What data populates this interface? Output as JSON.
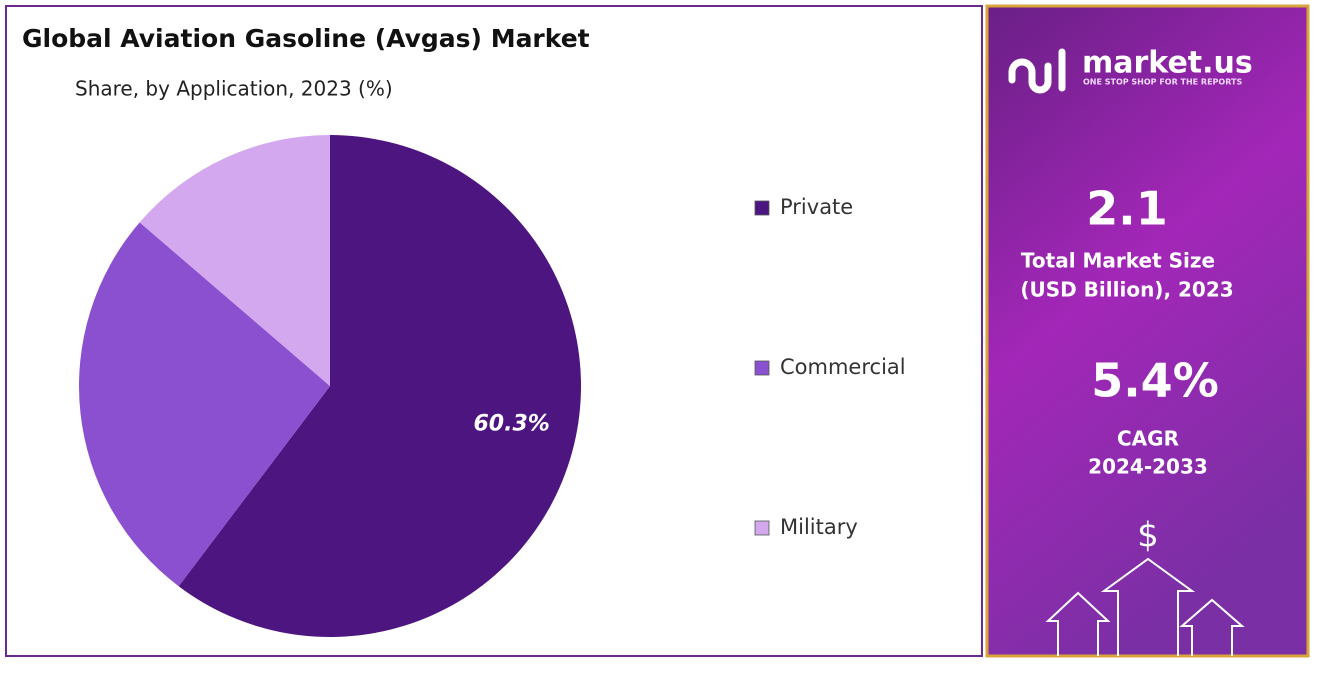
{
  "chart_data": {
    "type": "pie",
    "title": "Global Aviation Gasoline (Avgas) Market",
    "subtitle": "Share, by Application, 2023 (%)",
    "categories": [
      "Private",
      "Commercial",
      "Military"
    ],
    "values": [
      60.3,
      26,
      13.7
    ],
    "value_labels": [
      "60.3%",
      null,
      null
    ],
    "colors": [
      "#4d1580",
      "#8b50d0",
      "#d3a8ee"
    ]
  },
  "panel": {
    "logo": "market.us",
    "tagline": "ONE STOP SHOP FOR THE REPORTS",
    "market_size": "2.1",
    "market_size_label_1": "Total Market Size",
    "market_size_label_2": "(USD Billion), 2023",
    "cagr": "5.4%",
    "cagr_label_1": "CAGR",
    "cagr_label_2": "2024-2033",
    "currency_icon": "$"
  }
}
